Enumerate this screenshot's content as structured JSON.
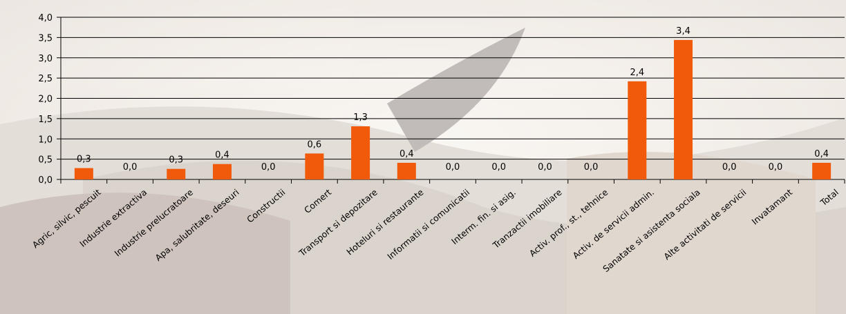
{
  "chart_data": {
    "type": "bar",
    "categories": [
      "Agric, silvic, pescuit",
      "Industrie extractiva",
      "Industrie prelucratoare",
      "Apa, salubritate, deseuri",
      "Constructii",
      "Comert",
      "Transport si depozitare",
      "Hoteluri si restaurante",
      "Informatii si comunicatii",
      "Interm. fin. si asig.",
      "Tranzactii imobiliare",
      "Activ. prof., st., tehnice",
      "Activ. de servicii admin.",
      "Sanatate si asistenta sociala",
      "Alte activitati de servicii",
      "Invatamant",
      "Total"
    ],
    "values": [
      0.28,
      0.0,
      0.26,
      0.38,
      0.0,
      0.64,
      1.31,
      0.41,
      0.0,
      0.0,
      0.0,
      0.0,
      2.42,
      3.44,
      0.0,
      0.0,
      0.41
    ],
    "data_labels": [
      "0,3",
      "0,0",
      "0,3",
      "0,4",
      "0,0",
      "0,6",
      "1,3",
      "0,4",
      "0,0",
      "0,0",
      "0,0",
      "0,0",
      "2,4",
      "3,4",
      "0,0",
      "0,0",
      "0,4"
    ],
    "y_ticks": [
      "0,0",
      "0,5",
      "1,0",
      "1,5",
      "2,0",
      "2,5",
      "3,0",
      "3,5",
      "4,0"
    ],
    "ylim": [
      0,
      4
    ],
    "grid": true,
    "legend": "none",
    "title": "",
    "xlabel": "",
    "ylabel": "",
    "colors": {
      "bar": "#f05a0a",
      "grid": "#000000"
    }
  }
}
